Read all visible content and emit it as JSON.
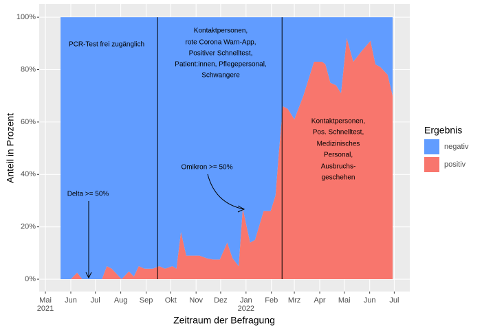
{
  "chart_data": {
    "type": "area",
    "xlabel": "Zeitraum der Befragung",
    "ylabel": "Anteil in Prozent",
    "legend_title": "Ergebnis",
    "x": [
      18.5,
      24,
      31,
      38.7,
      45,
      60,
      69,
      75,
      81,
      93,
      102,
      108,
      114,
      121,
      131,
      139,
      146,
      155,
      160,
      165.5,
      172,
      180,
      188,
      197,
      205,
      213,
      222,
      228.5,
      236,
      241,
      250,
      256,
      266.4,
      275,
      281,
      285,
      290,
      296,
      304,
      315,
      328,
      338,
      342,
      348,
      355,
      361,
      368,
      376,
      386,
      397,
      403,
      409,
      418,
      424
    ],
    "series": [
      {
        "name": "negativ",
        "color": "#619CFF",
        "values": [
          100,
          100,
          100,
          97.5,
          100,
          100,
          100,
          95,
          96,
          100,
          97,
          99,
          95,
          96,
          96,
          95,
          96,
          95,
          96,
          82,
          91,
          91,
          91,
          92,
          92.5,
          92.5,
          86,
          92,
          95,
          73,
          86,
          85,
          74,
          74,
          68,
          52,
          34,
          35,
          39,
          30,
          17,
          17,
          18,
          25,
          26,
          29,
          8,
          17,
          13,
          9,
          18,
          19,
          22,
          30
        ]
      },
      {
        "name": "positiv",
        "color": "#F8766D",
        "values": [
          0,
          0,
          0,
          2.5,
          0,
          0,
          0,
          5,
          4,
          0,
          3,
          1,
          5,
          4,
          4,
          5,
          4,
          5,
          4,
          18,
          9,
          9,
          9,
          8,
          7.5,
          7.5,
          14,
          8,
          5,
          27,
          14,
          15,
          26,
          26,
          32,
          48,
          66,
          65,
          61,
          70,
          83,
          83,
          82,
          75,
          74,
          71,
          92,
          83,
          87,
          91,
          82,
          81,
          78,
          70
        ]
      }
    ],
    "xlim": [
      -7.6,
      445
    ],
    "xticks": [
      {
        "value": 0,
        "label": "Mai\n2021"
      },
      {
        "value": 31,
        "label": "Jun"
      },
      {
        "value": 61,
        "label": "Jul"
      },
      {
        "value": 92,
        "label": "Aug"
      },
      {
        "value": 123,
        "label": "Sep"
      },
      {
        "value": 153,
        "label": "Okt"
      },
      {
        "value": 184,
        "label": "Nov"
      },
      {
        "value": 214,
        "label": "Dez"
      },
      {
        "value": 245,
        "label": "Jan\n2022"
      },
      {
        "value": 276,
        "label": "Feb"
      },
      {
        "value": 304,
        "label": "Mrz"
      },
      {
        "value": 335,
        "label": "Apr"
      },
      {
        "value": 365,
        "label": "Mai"
      },
      {
        "value": 396,
        "label": "Jun"
      },
      {
        "value": 426,
        "label": "Jul"
      }
    ],
    "ylim": [
      -4.7,
      105
    ],
    "yticks": [
      {
        "value": 0,
        "label": "0%"
      },
      {
        "value": 20,
        "label": "20%"
      },
      {
        "value": 40,
        "label": "40%"
      },
      {
        "value": 60,
        "label": "60%"
      },
      {
        "value": 80,
        "label": "80%"
      },
      {
        "value": 100,
        "label": "100%"
      }
    ],
    "grid": true,
    "vlines": [
      137,
      289
    ],
    "annotations": [
      [
        "PCR-Test frei zugänglich"
      ],
      [
        "Kontaktpersonen,",
        "rote Corona Warn-App,",
        "Positiver Schnelltest,",
        "Patient:innen, Pflegepersonal,",
        "Schwangere"
      ],
      [
        "Kontaktpersonen,",
        "Pos. Schnelltest,",
        "Medizinisches",
        "Personal,",
        "Ausbruchs-",
        "geschehen"
      ],
      [
        "Delta >= 50%"
      ],
      [
        "Omikron >= 50%"
      ]
    ]
  }
}
